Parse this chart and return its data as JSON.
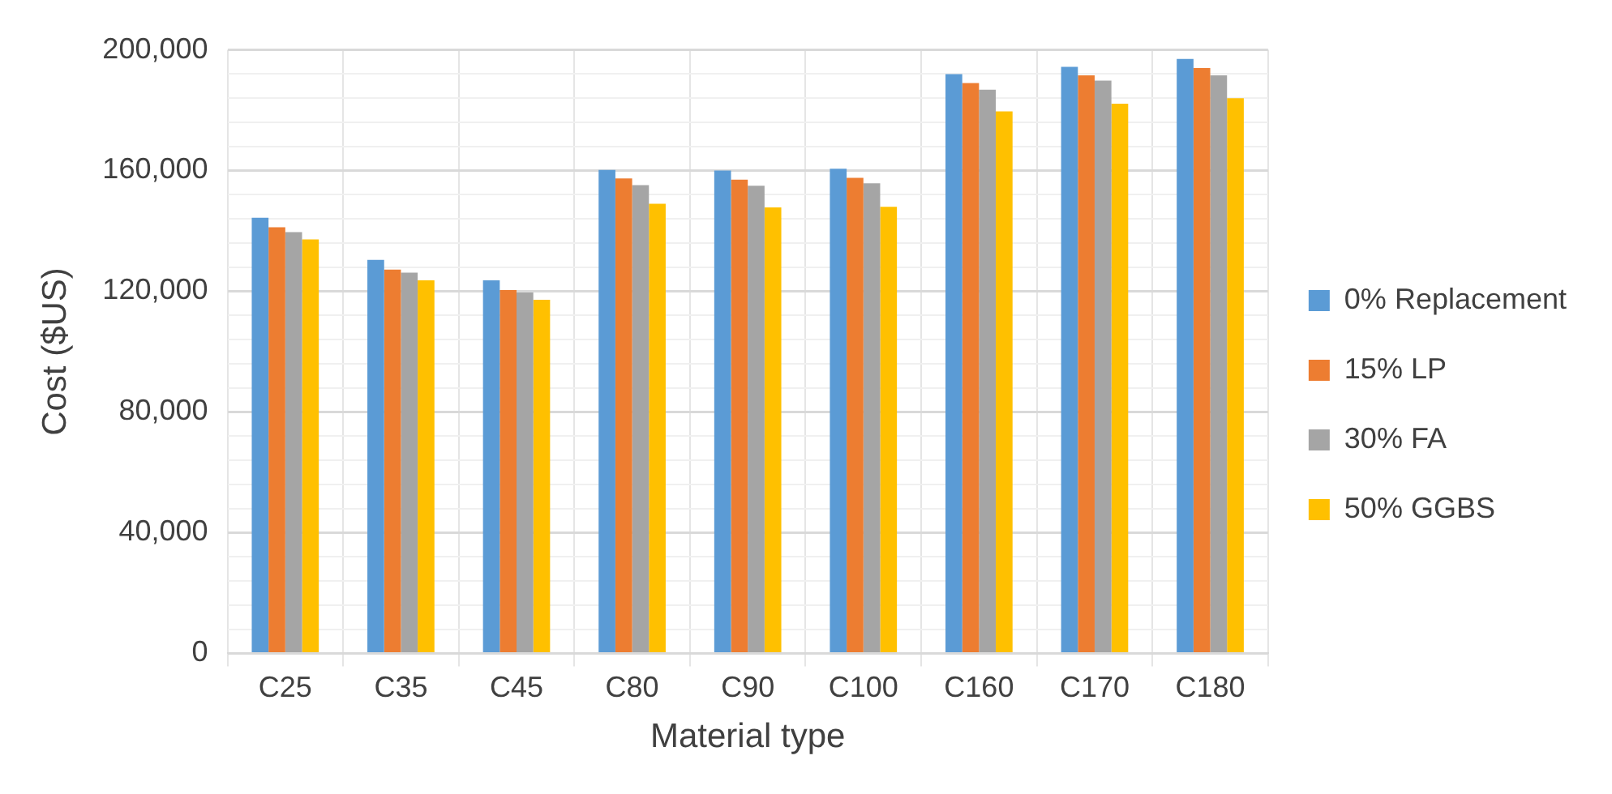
{
  "chart_data": {
    "type": "bar",
    "xlabel": "Material type",
    "ylabel": "Cost ($US)",
    "categories": [
      "C25",
      "C35",
      "C45",
      "C80",
      "C90",
      "C100",
      "C160",
      "C170",
      "C180"
    ],
    "series": [
      {
        "name": "0% Replacement",
        "color": "#5b9bd5",
        "values": [
          144400,
          130400,
          123600,
          160200,
          160000,
          160600,
          192000,
          194400,
          197000
        ]
      },
      {
        "name": "15% LP",
        "color": "#ed7d31",
        "values": [
          141200,
          127200,
          120400,
          157400,
          157000,
          157600,
          189000,
          191600,
          194000
        ]
      },
      {
        "name": "30% FA",
        "color": "#a5a5a5",
        "values": [
          139600,
          126200,
          119600,
          155200,
          155000,
          155800,
          186800,
          189800,
          191600
        ]
      },
      {
        "name": "50% GGBS",
        "color": "#ffc000",
        "values": [
          137200,
          123600,
          117200,
          149000,
          147800,
          148000,
          179600,
          182200,
          184000
        ]
      }
    ],
    "ylim": [
      0,
      200000
    ],
    "yticks": [
      {
        "value": 0,
        "label": "0"
      },
      {
        "value": 8000,
        "label": null
      },
      {
        "value": 16000,
        "label": null
      },
      {
        "value": 24000,
        "label": null
      },
      {
        "value": 32000,
        "label": null
      },
      {
        "value": 40000,
        "label": "40,000"
      },
      {
        "value": 48000,
        "label": null
      },
      {
        "value": 56000,
        "label": null
      },
      {
        "value": 64000,
        "label": null
      },
      {
        "value": 72000,
        "label": null
      },
      {
        "value": 80000,
        "label": "80,000"
      },
      {
        "value": 88000,
        "label": null
      },
      {
        "value": 96000,
        "label": null
      },
      {
        "value": 104000,
        "label": null
      },
      {
        "value": 112000,
        "label": null
      },
      {
        "value": 120000,
        "label": "120,000"
      },
      {
        "value": 128000,
        "label": null
      },
      {
        "value": 136000,
        "label": null
      },
      {
        "value": 144000,
        "label": null
      },
      {
        "value": 152000,
        "label": null
      },
      {
        "value": 160000,
        "label": "160,000"
      },
      {
        "value": 168000,
        "label": null
      },
      {
        "value": 176000,
        "label": null
      },
      {
        "value": 184000,
        "label": null
      },
      {
        "value": 192000,
        "label": null
      },
      {
        "value": 200000,
        "label": "200,000"
      }
    ],
    "grid": true,
    "legend": "right"
  }
}
